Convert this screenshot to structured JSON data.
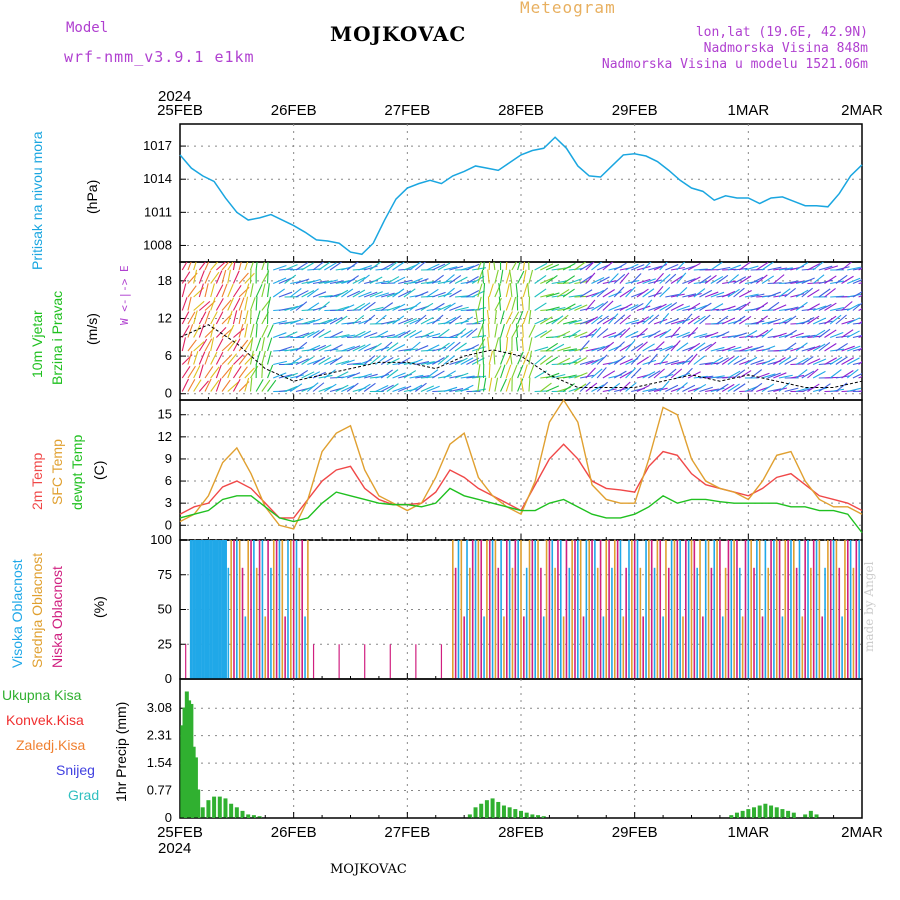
{
  "header": {
    "title": "MOJKOVAC",
    "meteogram": "Meteogram",
    "model_label": "Model",
    "model_name": "wrf-nmm_v3.9.1 e1km",
    "lonlat": "lon,lat (19.6E, 42.9N)",
    "elevation": "Nadmorska Visina 848m",
    "elevation_model": "Nadmorska Visina u modelu 1521.06m",
    "year": "2024",
    "footer": "MOJKOVAC",
    "made_by": "made by Angel"
  },
  "x_axis": {
    "dates": [
      "25FEB",
      "26FEB",
      "27FEB",
      "28FEB",
      "29FEB",
      "1MAR",
      "2MAR"
    ]
  },
  "panels": {
    "pressure": {
      "ylabel_main": "Pritisak na nivou mora",
      "unit": "(hPa)"
    },
    "wind": {
      "ylabel_1": "10m Vjetar",
      "ylabel_2": "Brzina i Pravac",
      "unit": "(m/s)",
      "compass": "W <-|-> E"
    },
    "temp": {
      "ylabel_1": "2m Temp",
      "ylabel_2": "SFC Temp",
      "ylabel_3": "dewpt Temp",
      "unit": "(C)"
    },
    "cloud": {
      "ylabel_1": "Visoka Oblacnost",
      "ylabel_2": "Srednja Oblacnost",
      "ylabel_3": "Niska Oblacnost",
      "unit": "(%)"
    },
    "precip": {
      "unit": "1hr Precip (mm)",
      "legend": [
        "Ukupna Kisa",
        "Konvek.Kisa",
        "Zaledj.Kisa",
        "Snijeg",
        "Grad"
      ]
    }
  },
  "colors": {
    "pressure": "#1aa6e0",
    "temp2m": "#f04848",
    "sfc": "#e0a030",
    "dew": "#20c020",
    "high_cloud": "#20a8e8",
    "mid_cloud": "#e0a030",
    "low_cloud": "#d02080",
    "precip": "#30b030",
    "conv": "#f03030",
    "frz": "#f08030",
    "snow": "#4040e0",
    "grad": "#30c0c0",
    "purple_text": "#b040d0"
  },
  "chart_data": [
    {
      "type": "line",
      "name": "pressure",
      "x_days": [
        0,
        0.1,
        0.2,
        0.3,
        0.4,
        0.5,
        0.6,
        0.7,
        0.8,
        0.9,
        1.0,
        1.1,
        1.2,
        1.3,
        1.4,
        1.5,
        1.6,
        1.7,
        1.8,
        1.9,
        2.0,
        2.1,
        2.2,
        2.3,
        2.4,
        2.5,
        2.6,
        2.7,
        2.8,
        2.9,
        3.0,
        3.1,
        3.2,
        3.3,
        3.4,
        3.5,
        3.6,
        3.7,
        3.8,
        3.9,
        4.0,
        4.1,
        4.2,
        4.3,
        4.4,
        4.5,
        4.6,
        4.7,
        4.8,
        4.9,
        5.0,
        5.1,
        5.2,
        5.3,
        5.4,
        5.5,
        5.6,
        5.7,
        5.8,
        5.9,
        6.0
      ],
      "values": [
        1016.2,
        1015.0,
        1014.3,
        1013.8,
        1012.3,
        1011.0,
        1010.3,
        1010.5,
        1010.8,
        1010.3,
        1009.8,
        1009.2,
        1008.5,
        1008.4,
        1008.2,
        1007.4,
        1007.2,
        1008.2,
        1010.3,
        1012.2,
        1013.2,
        1013.6,
        1013.9,
        1013.6,
        1014.3,
        1014.7,
        1015.2,
        1015.0,
        1014.8,
        1015.5,
        1016.2,
        1016.6,
        1016.8,
        1017.8,
        1016.8,
        1015.2,
        1014.3,
        1014.2,
        1015.2,
        1016.2,
        1016.3,
        1016.1,
        1015.6,
        1014.8,
        1013.9,
        1013.2,
        1012.9,
        1012.1,
        1012.5,
        1012.3,
        1012.3,
        1011.8,
        1012.3,
        1012.4,
        1012.0,
        1011.6,
        1011.6,
        1011.5,
        1012.7,
        1014.3,
        1015.3
      ],
      "ylim": [
        1006.5,
        1019
      ],
      "yticks": [
        1008,
        1011,
        1014,
        1017
      ]
    },
    {
      "type": "line",
      "name": "wind_speed",
      "x_days": [
        0,
        0.25,
        0.5,
        0.75,
        1.0,
        1.25,
        1.5,
        1.75,
        2.0,
        2.25,
        2.5,
        2.75,
        3.0,
        3.25,
        3.5,
        3.75,
        4.0,
        4.25,
        4.5,
        4.75,
        5.0,
        5.25,
        5.5,
        5.75,
        6.0
      ],
      "values": [
        9,
        11,
        8,
        4,
        2,
        3,
        4,
        5,
        5,
        4,
        6,
        7,
        6,
        3,
        1,
        1,
        1,
        2,
        3,
        2,
        3,
        2,
        1,
        1,
        2
      ],
      "ylim": [
        -1,
        21
      ],
      "yticks": [
        0,
        6,
        12,
        18
      ]
    },
    {
      "type": "line",
      "name": "temperature",
      "x_days": [
        0,
        0.125,
        0.25,
        0.375,
        0.5,
        0.625,
        0.75,
        0.875,
        1.0,
        1.125,
        1.25,
        1.375,
        1.5,
        1.625,
        1.75,
        1.875,
        2.0,
        2.125,
        2.25,
        2.375,
        2.5,
        2.625,
        2.75,
        2.875,
        3.0,
        3.125,
        3.25,
        3.375,
        3.5,
        3.625,
        3.75,
        3.875,
        4.0,
        4.125,
        4.25,
        4.375,
        4.5,
        4.625,
        4.75,
        4.875,
        5.0,
        5.125,
        5.25,
        5.375,
        5.5,
        5.625,
        5.75,
        5.875,
        6.0
      ],
      "series": [
        {
          "name": "2m Temp",
          "values": [
            1.5,
            2.5,
            3.0,
            5.2,
            6.0,
            5.0,
            3.0,
            1.0,
            1.0,
            3.5,
            6.0,
            7.5,
            8.0,
            5.0,
            3.5,
            2.8,
            2.8,
            3.0,
            4.5,
            7.5,
            6.5,
            5.0,
            4.0,
            3.0,
            2.0,
            5.5,
            9.0,
            11.0,
            9.0,
            6.0,
            5.0,
            4.8,
            4.5,
            8.0,
            10.0,
            9.5,
            7.0,
            5.5,
            5.0,
            4.5,
            4.0,
            5.0,
            6.5,
            7.0,
            5.5,
            4.0,
            3.5,
            3.0,
            2.0
          ]
        },
        {
          "name": "SFC Temp",
          "values": [
            0.5,
            1.5,
            4.0,
            8.5,
            10.5,
            7.0,
            2.5,
            0,
            -0.5,
            3.5,
            10.0,
            12.5,
            13.5,
            7.5,
            4.0,
            3.0,
            2.0,
            3.0,
            6.5,
            11.0,
            12.5,
            6.5,
            4.0,
            2.5,
            1.5,
            6.0,
            14.0,
            17.0,
            14.0,
            5.5,
            3.5,
            3.0,
            3.0,
            9.0,
            16.0,
            15.0,
            9.0,
            6.0,
            5.0,
            4.5,
            3.5,
            6.0,
            9.5,
            10.0,
            6.0,
            3.5,
            2.5,
            2.5,
            1.5
          ]
        },
        {
          "name": "dewpt Temp",
          "values": [
            1.0,
            1.5,
            2.0,
            3.5,
            4.0,
            4.0,
            2.5,
            1.0,
            0.5,
            1.0,
            3.0,
            4.5,
            4.0,
            3.5,
            3.0,
            2.8,
            2.8,
            2.5,
            3.0,
            5.0,
            4.0,
            3.5,
            3.0,
            2.5,
            2.0,
            2.0,
            3.0,
            3.5,
            2.5,
            1.5,
            1.0,
            1.0,
            1.5,
            2.5,
            4.0,
            3.0,
            3.5,
            3.5,
            3.2,
            3.0,
            3.0,
            3.0,
            3.0,
            2.5,
            2.5,
            2.0,
            2.0,
            1.5,
            -1.0
          ]
        }
      ],
      "ylim": [
        -2,
        17
      ],
      "yticks": [
        0,
        3,
        6,
        9,
        12,
        15
      ]
    },
    {
      "type": "bar",
      "name": "cloud_cover",
      "ylim": [
        0,
        100
      ],
      "yticks": [
        0,
        25,
        50,
        75,
        100
      ]
    },
    {
      "type": "bar",
      "name": "precip_1hr",
      "x_days": [
        0.02,
        0.04,
        0.06,
        0.08,
        0.1,
        0.12,
        0.14,
        0.16,
        0.2,
        0.25,
        0.3,
        0.35,
        0.4,
        0.45,
        0.5,
        0.55,
        0.6,
        0.65,
        0.7,
        2.55,
        2.6,
        2.65,
        2.7,
        2.75,
        2.8,
        2.85,
        2.9,
        2.95,
        3.0,
        3.05,
        3.1,
        3.15,
        3.2,
        4.85,
        4.9,
        4.95,
        5.0,
        5.05,
        5.1,
        5.15,
        5.2,
        5.25,
        5.3,
        5.35,
        5.4,
        5.5,
        5.55,
        5.6
      ],
      "values": [
        2.6,
        3.1,
        3.55,
        3.3,
        3.2,
        2.0,
        1.7,
        0.8,
        0.3,
        0.5,
        0.6,
        0.6,
        0.55,
        0.4,
        0.3,
        0.2,
        0.1,
        0.08,
        0.05,
        0.1,
        0.3,
        0.4,
        0.5,
        0.55,
        0.45,
        0.35,
        0.3,
        0.25,
        0.2,
        0.15,
        0.1,
        0.08,
        0.05,
        0.08,
        0.15,
        0.2,
        0.25,
        0.3,
        0.35,
        0.4,
        0.35,
        0.3,
        0.25,
        0.2,
        0.15,
        0.1,
        0.2,
        0.1
      ],
      "ylim": [
        0,
        3.9
      ],
      "yticks": [
        0,
        0.77,
        1.54,
        2.31,
        3.08
      ]
    }
  ]
}
